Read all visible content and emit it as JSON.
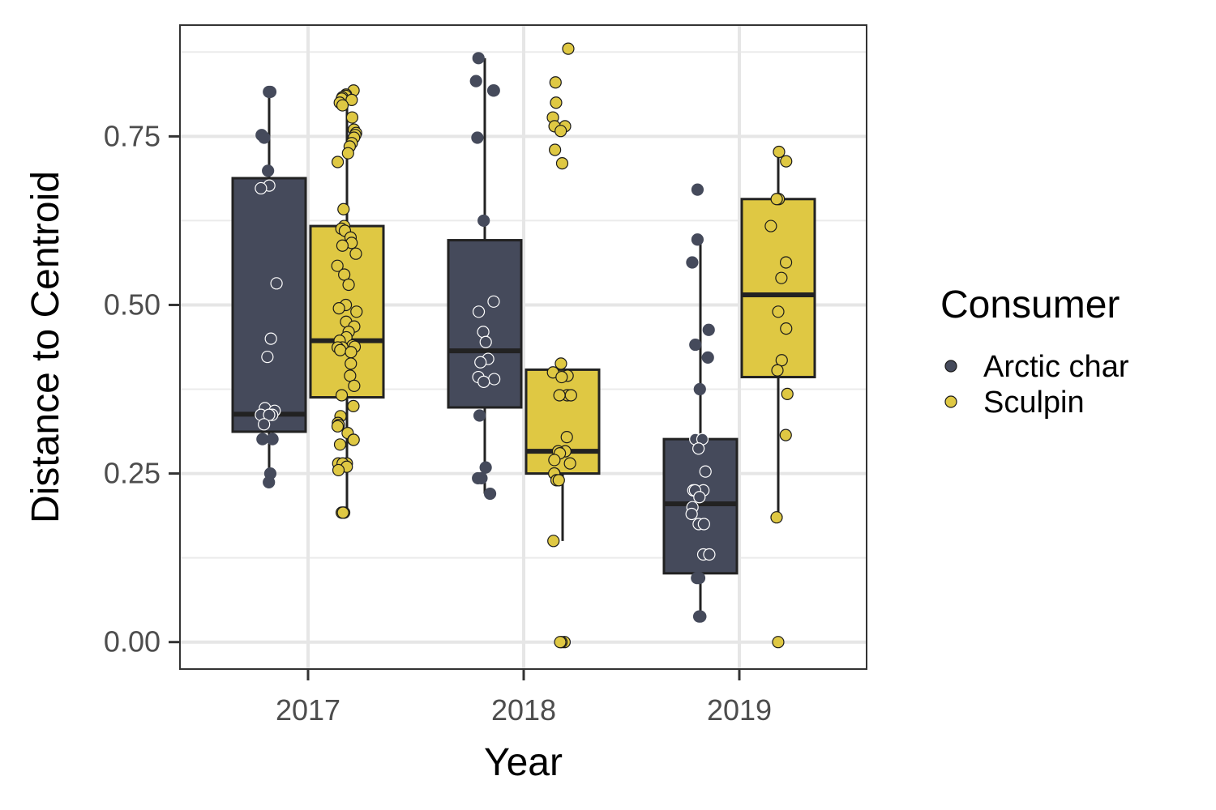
{
  "chart_data": {
    "type": "box",
    "xlabel": "Year",
    "ylabel": "Distance to Centroid",
    "ylim": [
      -0.04,
      0.915
    ],
    "yticks": [
      0.0,
      0.25,
      0.5,
      0.75
    ],
    "ytick_labels": [
      "0.00",
      "0.25",
      "0.50",
      "0.75"
    ],
    "categories": [
      "2017",
      "2018",
      "2019"
    ],
    "grid": true,
    "legend": {
      "title": "Consumer",
      "position": "right"
    },
    "series": [
      {
        "name": "Arctic char",
        "color": "#454a5b",
        "boxes": [
          {
            "category": "2017",
            "q1": 0.312,
            "median": 0.338,
            "q3": 0.688,
            "whisker_low": 0.237,
            "whisker_high": 0.816
          },
          {
            "category": "2018",
            "q1": 0.348,
            "median": 0.432,
            "q3": 0.596,
            "whisker_low": 0.22,
            "whisker_high": 0.866
          },
          {
            "category": "2019",
            "q1": 0.102,
            "median": 0.205,
            "q3": 0.301,
            "whisker_low": 0.038,
            "whisker_high": 0.596
          }
        ],
        "points": [
          {
            "category": "2017",
            "values": [
              0.816,
              0.816,
              0.752,
              0.748,
              0.699,
              0.677,
              0.673,
              0.532,
              0.45,
              0.423,
              0.347,
              0.343,
              0.337,
              0.337,
              0.337,
              0.323,
              0.301,
              0.301,
              0.25,
              0.237
            ]
          },
          {
            "category": "2018",
            "values": [
              0.866,
              0.832,
              0.818,
              0.818,
              0.748,
              0.625,
              0.505,
              0.49,
              0.46,
              0.445,
              0.42,
              0.415,
              0.393,
              0.39,
              0.386,
              0.336,
              0.259,
              0.243,
              0.243,
              0.22
            ]
          },
          {
            "category": "2019",
            "values": [
              0.671,
              0.597,
              0.563,
              0.463,
              0.441,
              0.422,
              0.375,
              0.301,
              0.301,
              0.287,
              0.253,
              0.225,
              0.225,
              0.225,
              0.215,
              0.2,
              0.19,
              0.175,
              0.175,
              0.13,
              0.13,
              0.095,
              0.095,
              0.038,
              0.038
            ]
          }
        ]
      },
      {
        "name": "Sculpin",
        "color": "#dfc843",
        "boxes": [
          {
            "category": "2017",
            "q1": 0.363,
            "median": 0.447,
            "q3": 0.617,
            "whisker_low": 0.192,
            "whisker_high": 0.818
          },
          {
            "category": "2018",
            "q1": 0.25,
            "median": 0.283,
            "q3": 0.404,
            "whisker_low": 0.15,
            "whisker_high": 0.413
          },
          {
            "category": "2019",
            "q1": 0.393,
            "median": 0.515,
            "q3": 0.657,
            "whisker_low": 0.185,
            "whisker_high": 0.727
          }
        ],
        "points": [
          {
            "category": "2017",
            "values": [
              0.818,
              0.812,
              0.81,
              0.808,
              0.806,
              0.804,
              0.8,
              0.796,
              0.778,
              0.76,
              0.755,
              0.752,
              0.748,
              0.74,
              0.735,
              0.725,
              0.712,
              0.642,
              0.617,
              0.613,
              0.61,
              0.6,
              0.592,
              0.588,
              0.576,
              0.558,
              0.545,
              0.53,
              0.5,
              0.495,
              0.49,
              0.475,
              0.468,
              0.46,
              0.452,
              0.447,
              0.44,
              0.438,
              0.437,
              0.437,
              0.433,
              0.43,
              0.413,
              0.395,
              0.38,
              0.366,
              0.35,
              0.335,
              0.325,
              0.322,
              0.32,
              0.31,
              0.3,
              0.3,
              0.293,
              0.265,
              0.265,
              0.265,
              0.26,
              0.255,
              0.192,
              0.192,
              0.192
            ]
          },
          {
            "category": "2018",
            "values": [
              0.88,
              0.83,
              0.8,
              0.778,
              0.765,
              0.765,
              0.758,
              0.73,
              0.71,
              0.413,
              0.4,
              0.395,
              0.393,
              0.366,
              0.366,
              0.366,
              0.304,
              0.283,
              0.283,
              0.28,
              0.27,
              0.265,
              0.25,
              0.25,
              0.24,
              0.24,
              0.15,
              0.0,
              0.0,
              0.0
            ]
          },
          {
            "category": "2019",
            "values": [
              0.727,
              0.713,
              0.657,
              0.657,
              0.617,
              0.563,
              0.54,
              0.49,
              0.465,
              0.418,
              0.403,
              0.368,
              0.307,
              0.185,
              0.0
            ]
          }
        ]
      }
    ]
  }
}
